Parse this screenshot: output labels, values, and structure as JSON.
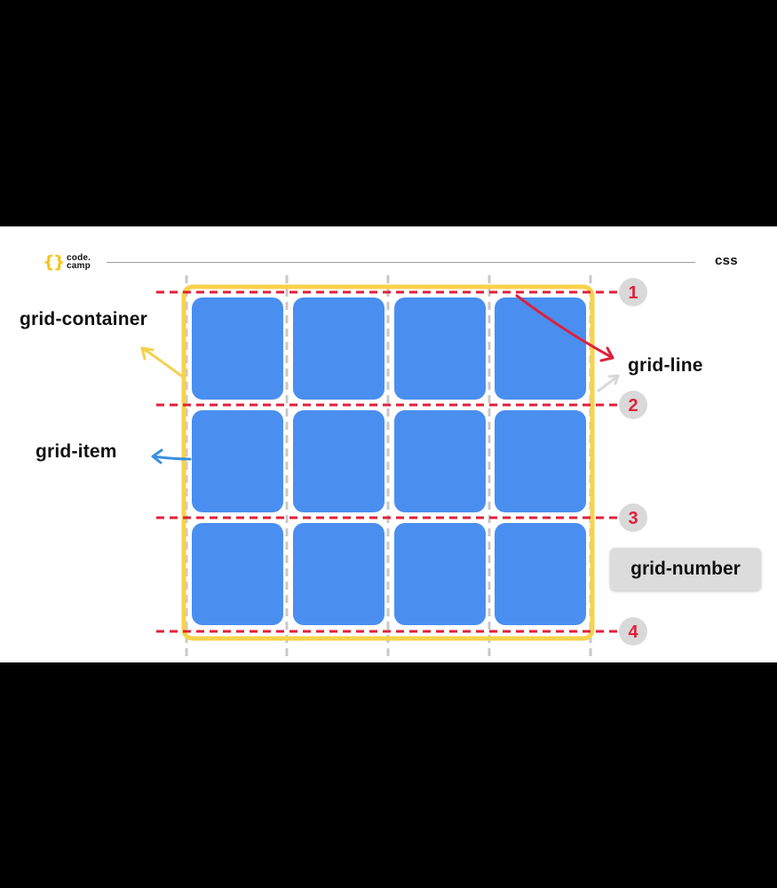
{
  "brand": {
    "logo_line1": "code.",
    "logo_line2": "camp"
  },
  "topic": "css",
  "labels": {
    "grid_container": "grid-container",
    "grid_item": "grid-item",
    "grid_line": "grid-line",
    "grid_number": "grid-number"
  },
  "line_numbers": [
    "1",
    "2",
    "3",
    "4"
  ],
  "grid": {
    "rows": 3,
    "columns": 4
  },
  "colors": {
    "item": "#4a8ff0",
    "container_border": "#f8d24a",
    "row_line": "#e0203a",
    "column_line": "#c8c8c8",
    "number_circle": "#d9d9d9",
    "arrow_container": "#f5d04a",
    "arrow_item": "#3a8fe0",
    "arrow_line": "#e0203a"
  }
}
